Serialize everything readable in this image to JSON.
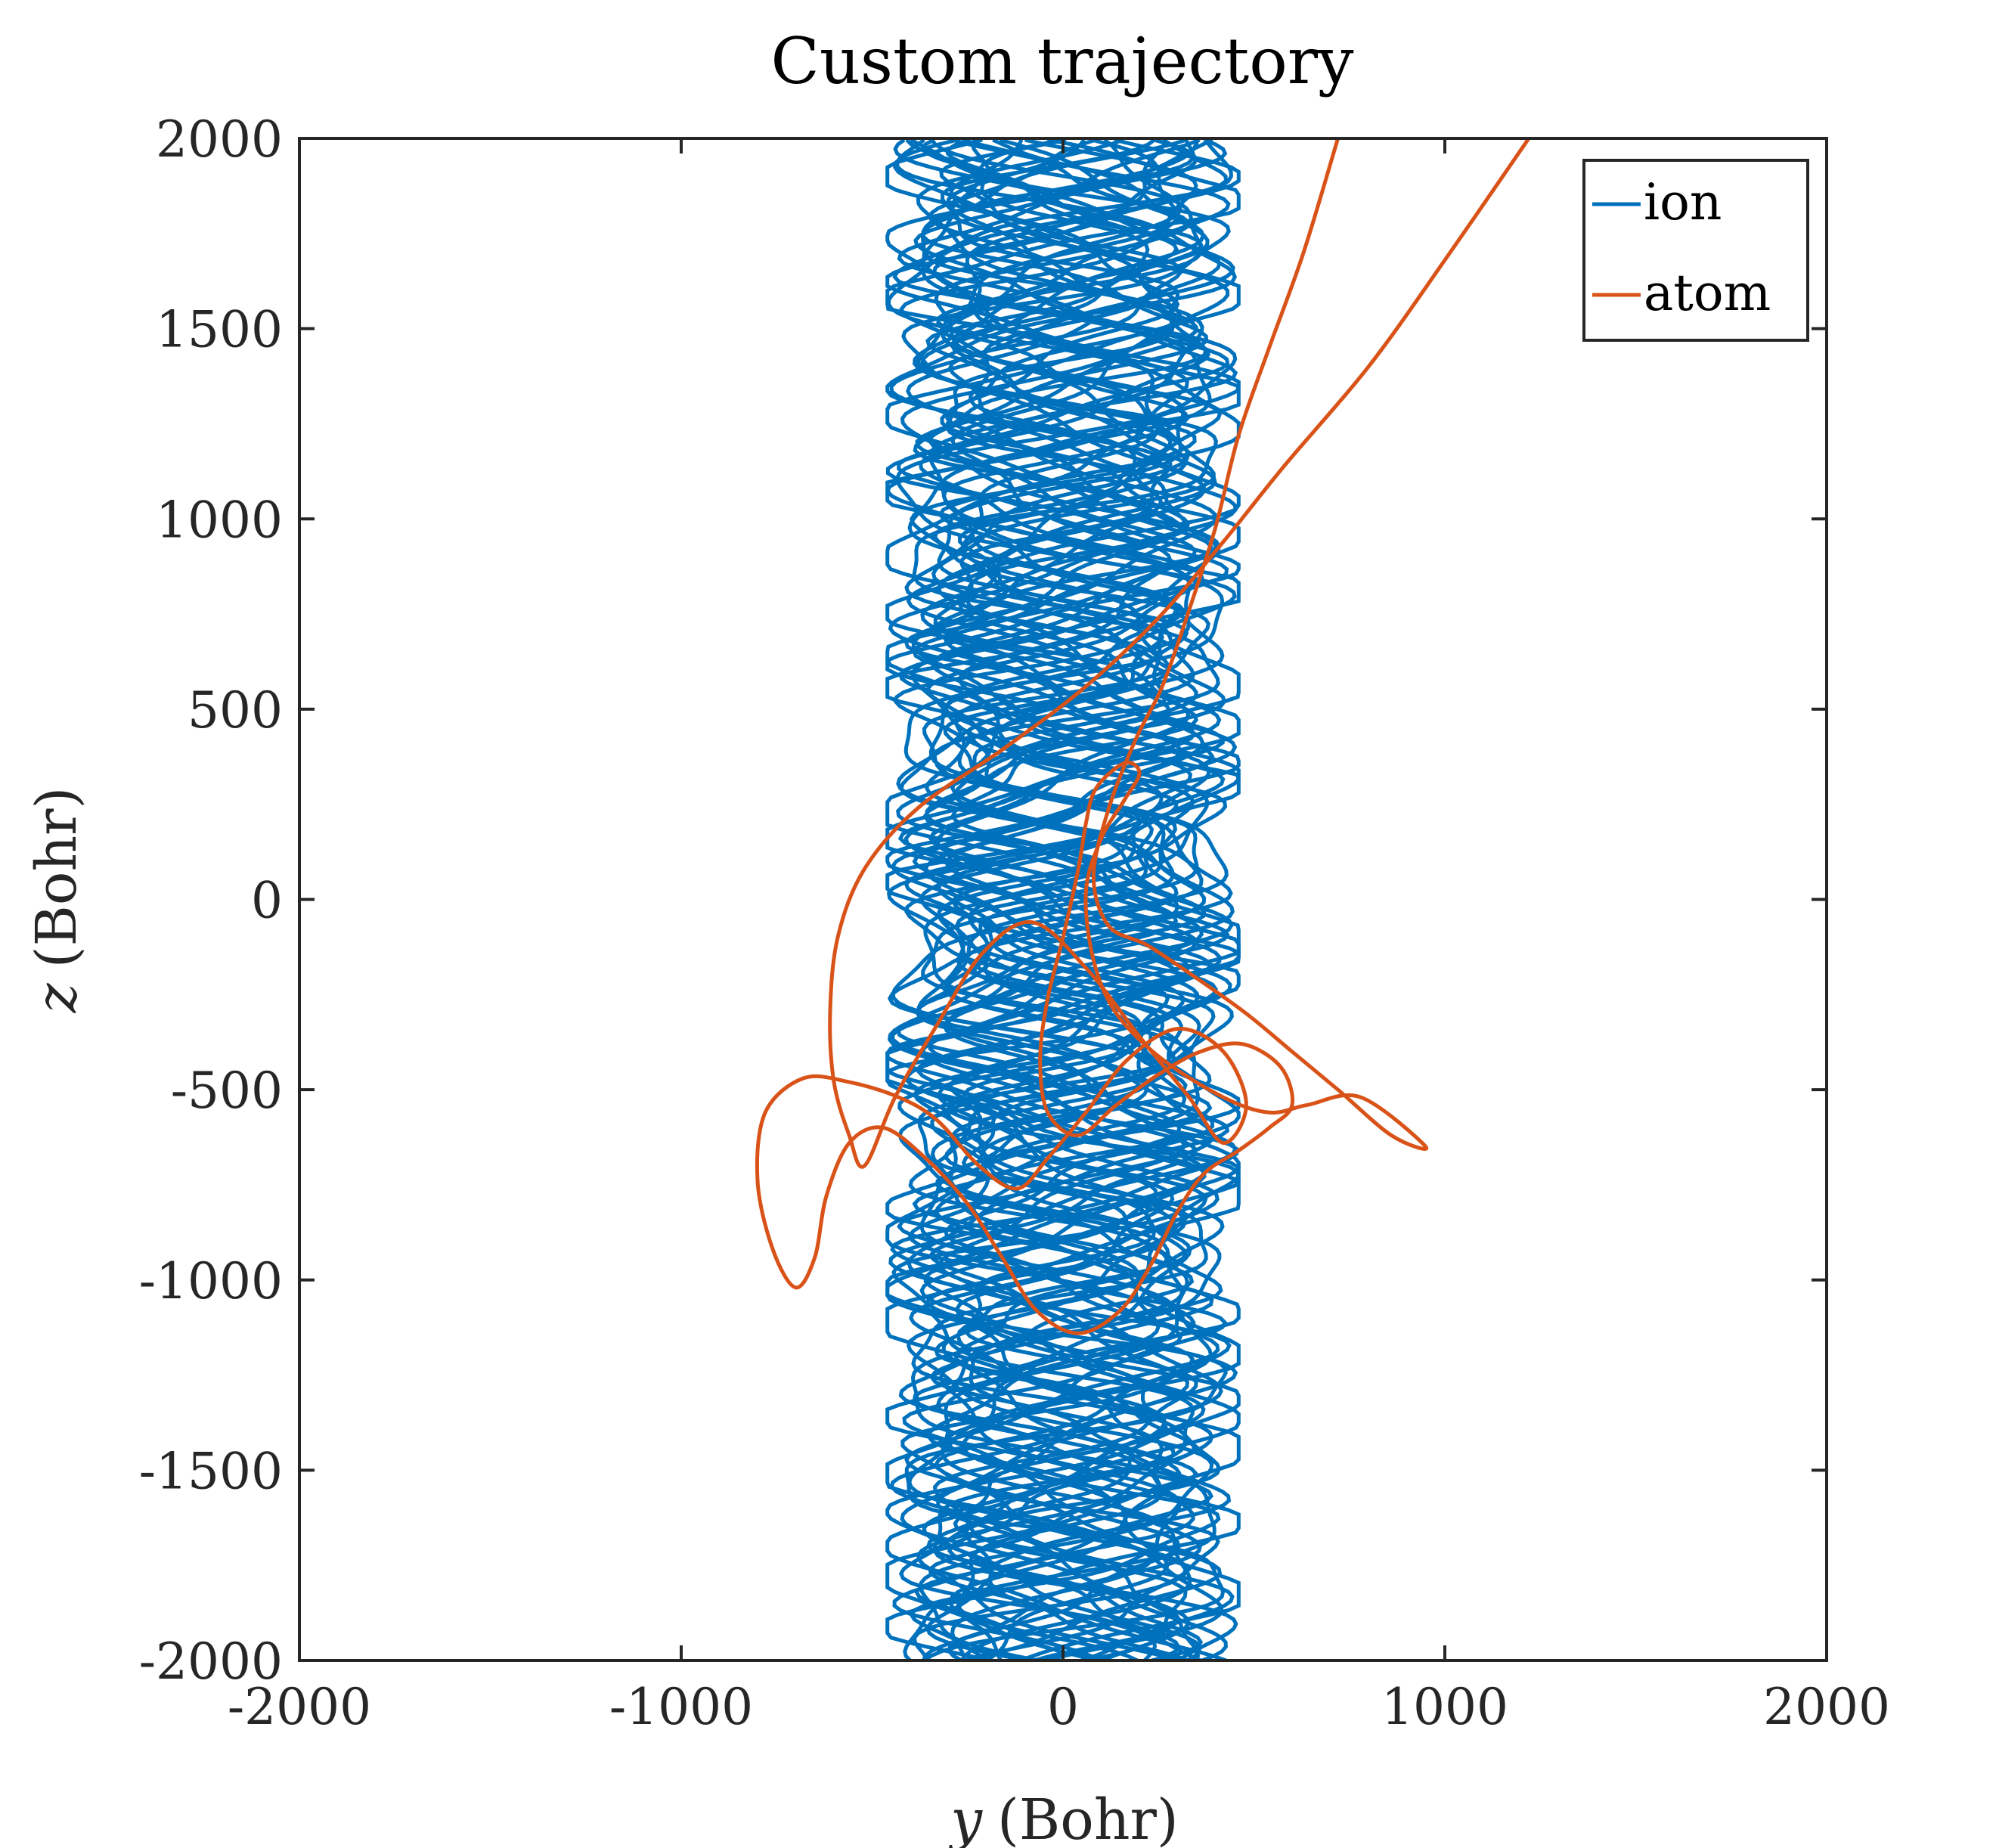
{
  "chart_data": {
    "type": "line",
    "title": "Custom trajectory",
    "xlabel": "y (Bohr)",
    "ylabel": "z (Bohr)",
    "xlabel_var": "y",
    "xlabel_unit": "(Bohr)",
    "ylabel_var": "z",
    "ylabel_unit": "(Bohr)",
    "xlim": [
      -2000,
      2000
    ],
    "ylim": [
      -2000,
      2000
    ],
    "xticks": [
      -2000,
      -1000,
      0,
      1000,
      2000
    ],
    "yticks": [
      -2000,
      -1500,
      -1000,
      -500,
      0,
      500,
      1000,
      1500,
      2000
    ],
    "xtick_labels": [
      "-2000",
      "-1000",
      "0",
      "1000",
      "2000"
    ],
    "ytick_labels": [
      "-2000",
      "-1500",
      "-1000",
      "-500",
      "0",
      "500",
      "1000",
      "1500",
      "2000"
    ],
    "grid": false,
    "legend_position": "top-right",
    "series": [
      {
        "name": "ion",
        "color": "#0072BD",
        "description": "dense braided band confined to y between about -460 and 460 Bohr, spanning the full z range",
        "y_range": [
          -460,
          460
        ],
        "z_range": [
          -2000,
          2000
        ]
      },
      {
        "name": "atom",
        "color": "#D95319",
        "description": "tangled loops centred near (0, -550) Bohr, with two straight escape tails leaving through the top edge",
        "points": [
          [
            1220,
            2000
          ],
          [
            1000,
            1680
          ],
          [
            800,
            1400
          ],
          [
            580,
            1140
          ],
          [
            420,
            940
          ],
          [
            250,
            740
          ],
          [
            60,
            560
          ],
          [
            -150,
            400
          ],
          [
            -380,
            240
          ],
          [
            -520,
            80
          ],
          [
            -590,
            -100
          ],
          [
            -610,
            -300
          ],
          [
            -600,
            -480
          ],
          [
            -560,
            -620
          ],
          [
            -520,
            -700
          ],
          [
            -440,
            -520
          ],
          [
            -330,
            -330
          ],
          [
            -210,
            -140
          ],
          [
            -80,
            -60
          ],
          [
            60,
            -180
          ],
          [
            200,
            -360
          ],
          [
            330,
            -520
          ],
          [
            420,
            -640
          ],
          [
            480,
            -540
          ],
          [
            420,
            -400
          ],
          [
            300,
            -340
          ],
          [
            170,
            -420
          ],
          [
            60,
            -560
          ],
          [
            -40,
            -680
          ],
          [
            -120,
            -760
          ],
          [
            -220,
            -700
          ],
          [
            -330,
            -580
          ],
          [
            -430,
            -520
          ],
          [
            -560,
            -480
          ],
          [
            -680,
            -470
          ],
          [
            -780,
            -560
          ],
          [
            -800,
            -740
          ],
          [
            -760,
            -920
          ],
          [
            -700,
            -1020
          ],
          [
            -650,
            -940
          ],
          [
            -620,
            -780
          ],
          [
            -560,
            -640
          ],
          [
            -470,
            -600
          ],
          [
            -360,
            -680
          ],
          [
            -250,
            -800
          ],
          [
            -160,
            -940
          ],
          [
            -70,
            -1080
          ],
          [
            40,
            -1140
          ],
          [
            150,
            -1080
          ],
          [
            230,
            -960
          ],
          [
            300,
            -820
          ],
          [
            370,
            -720
          ],
          [
            460,
            -660
          ],
          [
            540,
            -600
          ],
          [
            600,
            -540
          ],
          [
            570,
            -440
          ],
          [
            470,
            -380
          ],
          [
            360,
            -400
          ],
          [
            250,
            -460
          ],
          [
            140,
            -540
          ],
          [
            40,
            -620
          ],
          [
            -40,
            -560
          ],
          [
            -60,
            -420
          ],
          [
            -40,
            -260
          ],
          [
            0,
            -100
          ],
          [
            40,
            80
          ],
          [
            60,
            200
          ],
          [
            80,
            280
          ],
          [
            120,
            330
          ],
          [
            170,
            360
          ],
          [
            200,
            330
          ],
          [
            160,
            260
          ],
          [
            100,
            160
          ],
          [
            60,
            20
          ],
          [
            80,
            -160
          ],
          [
            140,
            -300
          ],
          [
            260,
            -420
          ],
          [
            420,
            -520
          ],
          [
            540,
            -560
          ],
          [
            640,
            -540
          ],
          [
            780,
            -520
          ],
          [
            950,
            -650
          ],
          [
            860,
            -620
          ],
          [
            720,
            -500
          ],
          [
            600,
            -400
          ],
          [
            480,
            -300
          ],
          [
            340,
            -200
          ],
          [
            220,
            -120
          ],
          [
            120,
            -70
          ],
          [
            80,
            60
          ],
          [
            120,
            240
          ],
          [
            190,
            420
          ],
          [
            260,
            560
          ],
          [
            330,
            760
          ],
          [
            400,
            980
          ],
          [
            460,
            1220
          ],
          [
            540,
            1450
          ],
          [
            630,
            1700
          ],
          [
            720,
            2000
          ]
        ]
      }
    ]
  }
}
